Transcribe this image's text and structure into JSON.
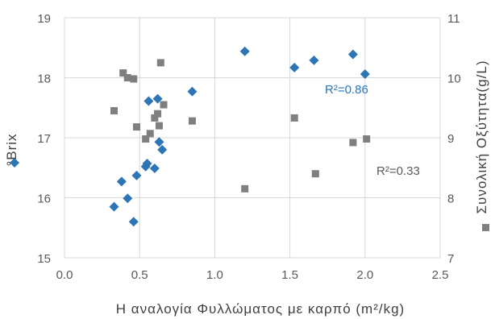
{
  "chart_data": {
    "type": "scatter",
    "title": "",
    "xlabel": "Η αναλογία Φυλλώματος με καρπό (m²/kg)",
    "ylabel_left": "°Brix",
    "ylabel_right": "Συνολική Οξύτητα(g/L)",
    "xlim": [
      0,
      2.5
    ],
    "ylim_left": [
      15,
      19
    ],
    "ylim_right": [
      7,
      11
    ],
    "x_ticks": [
      "0.0",
      "0.5",
      "1.0",
      "1.5",
      "2.0",
      "2.5"
    ],
    "y_left_ticks": [
      "15",
      "16",
      "17",
      "18",
      "19"
    ],
    "y_right_ticks": [
      "7",
      "8",
      "9",
      "10",
      "11"
    ],
    "grid": true,
    "legend": "left and right side markers",
    "series": [
      {
        "axis": "left",
        "marker": "diamond",
        "color": "#2E75B6",
        "points": [
          [
            0.33,
            15.85
          ],
          [
            0.38,
            16.27
          ],
          [
            0.42,
            15.99
          ],
          [
            0.46,
            15.6
          ],
          [
            0.48,
            16.37
          ],
          [
            0.54,
            16.52
          ],
          [
            0.55,
            16.57
          ],
          [
            0.56,
            17.61
          ],
          [
            0.6,
            16.49
          ],
          [
            0.62,
            17.65
          ],
          [
            0.63,
            16.93
          ],
          [
            0.65,
            16.8
          ],
          [
            0.85,
            17.77
          ],
          [
            1.2,
            18.44
          ],
          [
            1.53,
            18.17
          ],
          [
            1.66,
            18.29
          ],
          [
            1.92,
            18.39
          ],
          [
            2.0,
            18.06
          ]
        ],
        "trend": {
          "type": "polynomial",
          "r2_label": "R²=0.86",
          "color": "#2E75B6"
        }
      },
      {
        "axis": "right",
        "marker": "square",
        "color": "#7F7F7F",
        "points": [
          [
            0.33,
            9.45
          ],
          [
            0.39,
            10.08
          ],
          [
            0.42,
            10.0
          ],
          [
            0.46,
            9.98
          ],
          [
            0.48,
            9.18
          ],
          [
            0.54,
            8.98
          ],
          [
            0.57,
            9.07
          ],
          [
            0.6,
            9.33
          ],
          [
            0.62,
            9.4
          ],
          [
            0.63,
            9.2
          ],
          [
            0.64,
            10.25
          ],
          [
            0.66,
            9.55
          ],
          [
            0.85,
            9.28
          ],
          [
            1.2,
            8.15
          ],
          [
            1.53,
            9.33
          ],
          [
            1.67,
            8.4
          ],
          [
            1.92,
            8.92
          ],
          [
            2.01,
            8.98
          ]
        ],
        "trend": {
          "type": "power",
          "r2_label": "R²=0.33",
          "color": "#595959"
        }
      }
    ]
  }
}
